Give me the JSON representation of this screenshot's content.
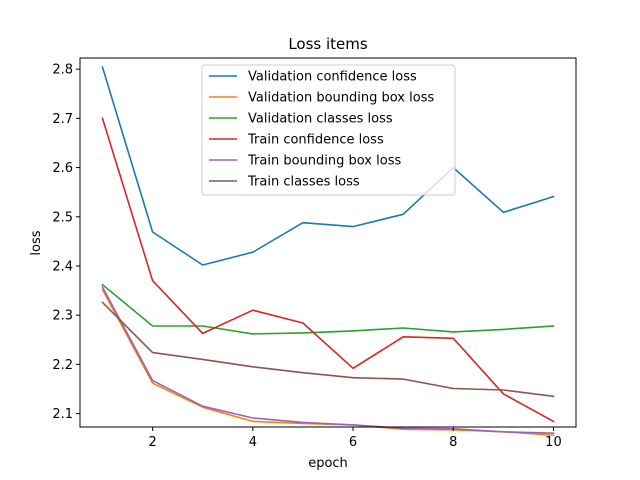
{
  "chart_data": {
    "type": "line",
    "title": "Loss items",
    "xlabel": "epoch",
    "ylabel": "loss",
    "xlim": [
      0.55,
      10.45
    ],
    "ylim": [
      2.0727,
      2.8227
    ],
    "xticks": [
      2,
      4,
      6,
      8,
      10
    ],
    "yticks": [
      2.1,
      2.2,
      2.3,
      2.4,
      2.5,
      2.6,
      2.7,
      2.8
    ],
    "ytick_labels": [
      "2.1",
      "2.2",
      "2.3",
      "2.4",
      "2.5",
      "2.6",
      "2.7",
      "2.8"
    ],
    "grid": false,
    "legend_position": "upper center",
    "x": [
      1,
      2,
      3,
      4,
      5,
      6,
      7,
      8,
      9,
      10
    ],
    "series": [
      {
        "name": "Validation confidence loss",
        "color": "#1f77b4",
        "values": [
          2.804,
          2.469,
          2.402,
          2.428,
          2.488,
          2.48,
          2.505,
          2.6,
          2.509,
          2.541
        ]
      },
      {
        "name": "Validation bounding box loss",
        "color": "#ff7f0e",
        "values": [
          2.352,
          2.162,
          2.113,
          2.084,
          2.08,
          2.077,
          2.068,
          2.067,
          2.063,
          2.056
        ]
      },
      {
        "name": "Validation classes loss",
        "color": "#2ca02c",
        "values": [
          2.362,
          2.278,
          2.278,
          2.262,
          2.264,
          2.268,
          2.274,
          2.266,
          2.271,
          2.278
        ]
      },
      {
        "name": "Train confidence loss",
        "color": "#d62728",
        "values": [
          2.7,
          2.37,
          2.263,
          2.31,
          2.284,
          2.192,
          2.256,
          2.253,
          2.14,
          2.084
        ]
      },
      {
        "name": "Train bounding box loss",
        "color": "#9467bd",
        "values": [
          2.357,
          2.167,
          2.115,
          2.091,
          2.082,
          2.077,
          2.07,
          2.069,
          2.063,
          2.06
        ]
      },
      {
        "name": "Train classes loss",
        "color": "#8c564b",
        "values": [
          2.326,
          2.224,
          2.21,
          2.195,
          2.183,
          2.173,
          2.17,
          2.151,
          2.148,
          2.135
        ]
      }
    ]
  }
}
